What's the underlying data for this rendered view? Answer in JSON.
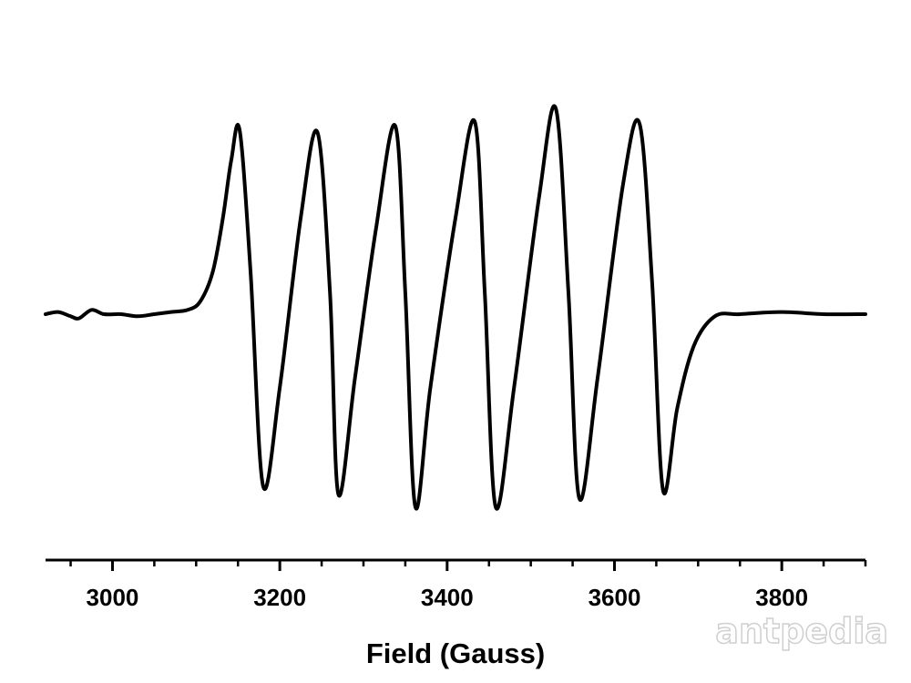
{
  "chart_data": {
    "type": "line",
    "title": "",
    "xlabel": "Field (Gauss)",
    "ylabel": "",
    "xlim": [
      2920,
      3900
    ],
    "ylim": [
      -1.0,
      1.0
    ],
    "x_ticks": [
      3000,
      3200,
      3400,
      3600,
      3800
    ],
    "x_tick_labels": [
      "3000",
      "3200",
      "3400",
      "3600",
      "3800"
    ],
    "y_axis_shown": false,
    "grid": false,
    "line_color": "#000000",
    "series": [
      {
        "x": [
          2920,
          2935,
          2950,
          2960,
          2975,
          2990,
          3010,
          3030,
          3050,
          3070,
          3090,
          3105,
          3120,
          3132,
          3142,
          3152,
          3165,
          3180,
          3200,
          3225,
          3245,
          3260,
          3270,
          3290,
          3315,
          3338,
          3350,
          3362,
          3380,
          3410,
          3433,
          3445,
          3458,
          3480,
          3510,
          3530,
          3545,
          3558,
          3580,
          3610,
          3630,
          3645,
          3658,
          3675,
          3695,
          3720,
          3750,
          3800,
          3850,
          3900
        ],
        "y": [
          0.0,
          0.01,
          -0.01,
          -0.02,
          0.02,
          0.0,
          0.0,
          -0.01,
          0.0,
          0.01,
          0.02,
          0.06,
          0.2,
          0.45,
          0.72,
          0.86,
          0.2,
          -0.82,
          -0.35,
          0.45,
          0.85,
          0.1,
          -0.86,
          -0.3,
          0.4,
          0.88,
          0.1,
          -0.92,
          -0.35,
          0.45,
          0.9,
          0.1,
          -0.92,
          -0.35,
          0.55,
          0.96,
          0.1,
          -0.88,
          -0.3,
          0.6,
          0.89,
          0.15,
          -0.84,
          -0.45,
          -0.15,
          -0.01,
          0.0,
          0.01,
          0.0,
          0.0
        ]
      }
    ]
  },
  "watermark": {
    "text": "antpedia"
  }
}
